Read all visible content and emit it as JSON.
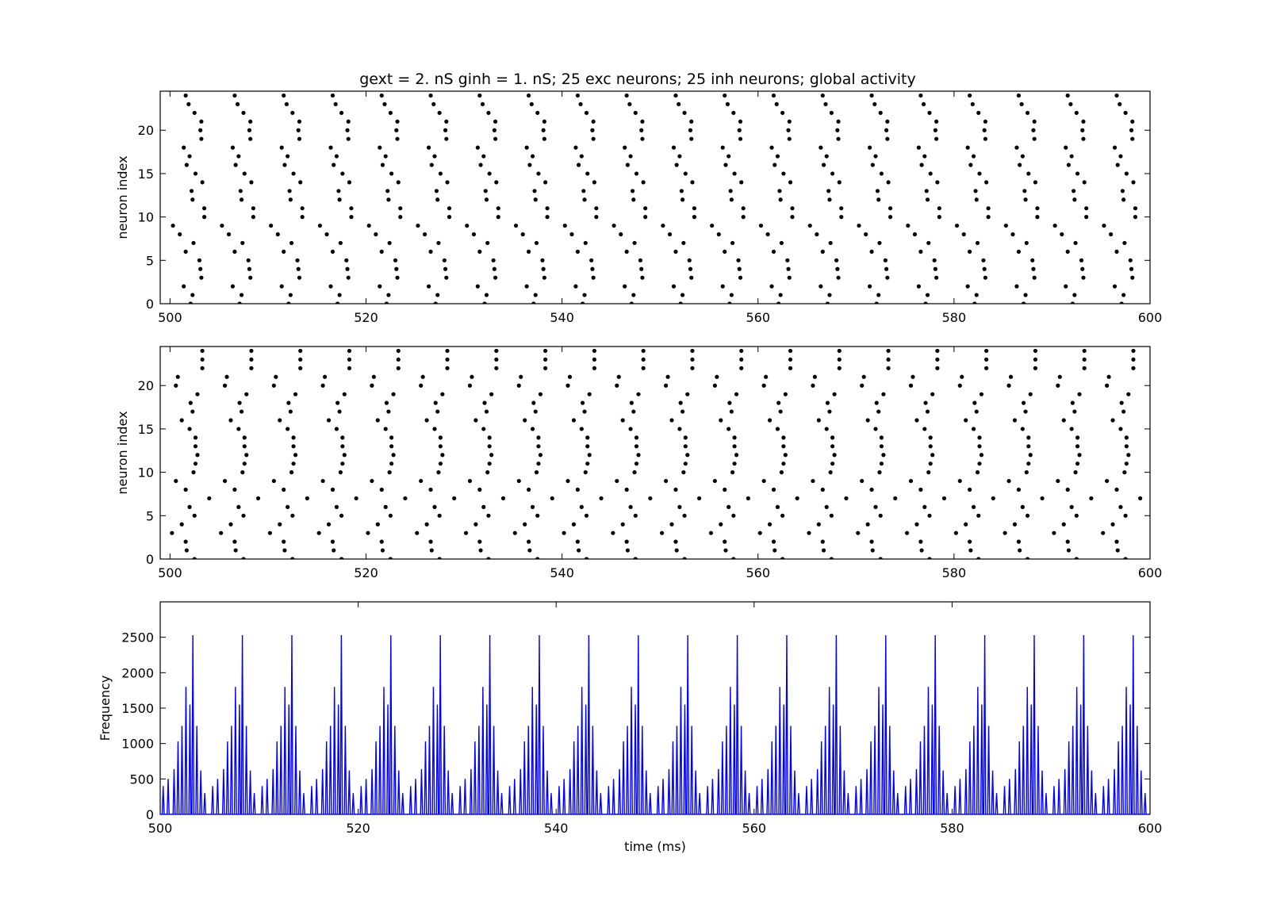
{
  "figure": {
    "title": "gext = 2. nS ginh = 1. nS; 25 exc neurons; 25 inh neurons; global activity"
  },
  "chart_data": [
    {
      "type": "scatter",
      "name": "excitatory-raster",
      "xlabel": "",
      "ylabel": "neuron index",
      "xlim": [
        499,
        600
      ],
      "ylim": [
        0,
        24.5
      ],
      "xticks": [
        500,
        520,
        540,
        560,
        580,
        600
      ],
      "yticks": [
        0,
        5,
        10,
        15,
        20
      ],
      "marker_color": "#000000",
      "pattern": {
        "period_ms": 5.0,
        "first_cycle_start_ms": 500.0,
        "cycles": 20,
        "spike_offsets_ms": [
          2.1,
          2.3,
          1.4,
          3.2,
          3.1,
          3.0,
          1.6,
          2.4,
          1.0,
          0.3,
          3.5,
          3.5,
          2.3,
          2.2,
          3.3,
          2.6,
          1.7,
          2.0,
          1.4,
          3.2,
          3.1,
          3.2,
          2.5,
          1.9,
          1.6
        ]
      }
    },
    {
      "type": "scatter",
      "name": "inhibitory-raster",
      "xlabel": "",
      "ylabel": "neuron index",
      "xlim": [
        499,
        600
      ],
      "ylim": [
        0,
        24.5
      ],
      "xticks": [
        500,
        520,
        540,
        560,
        580,
        600
      ],
      "yticks": [
        0,
        5,
        10,
        15,
        20
      ],
      "marker_color": "#000000",
      "pattern": {
        "period_ms": 5.0,
        "first_cycle_start_ms": 500.0,
        "cycles": 20,
        "spike_offsets_ms": [
          2.5,
          1.7,
          1.6,
          0.2,
          1.2,
          2.5,
          2.0,
          4.0,
          1.6,
          0.6,
          2.4,
          2.6,
          2.8,
          2.6,
          2.6,
          2.0,
          1.2,
          2.3,
          2.1,
          2.8,
          0.6,
          0.8,
          3.3,
          3.3,
          3.3
        ]
      }
    },
    {
      "type": "line",
      "name": "global-activity",
      "xlabel": "time (ms)",
      "ylabel": "Frequency",
      "xlim": [
        500,
        600
      ],
      "ylim": [
        0,
        3000
      ],
      "xticks": [
        500,
        520,
        540,
        560,
        580,
        600
      ],
      "yticks": [
        0,
        500,
        1000,
        1500,
        2000,
        2500
      ],
      "line_color": "#0000ff",
      "burst_period_ms": 5.0,
      "burst_start_ms": 500.0,
      "bursts": 20,
      "burst_peaks": [
        {
          "offset_ms": 0.3,
          "value": 400
        },
        {
          "offset_ms": 0.8,
          "value": 500
        },
        {
          "offset_ms": 1.4,
          "value": 640
        },
        {
          "offset_ms": 1.8,
          "value": 1030
        },
        {
          "offset_ms": 2.2,
          "value": 1250
        },
        {
          "offset_ms": 2.6,
          "value": 1800
        },
        {
          "offset_ms": 3.0,
          "value": 1550
        },
        {
          "offset_ms": 3.3,
          "value": 2530
        },
        {
          "offset_ms": 3.7,
          "value": 1250
        },
        {
          "offset_ms": 4.1,
          "value": 620
        },
        {
          "offset_ms": 4.5,
          "value": 300
        }
      ]
    }
  ]
}
